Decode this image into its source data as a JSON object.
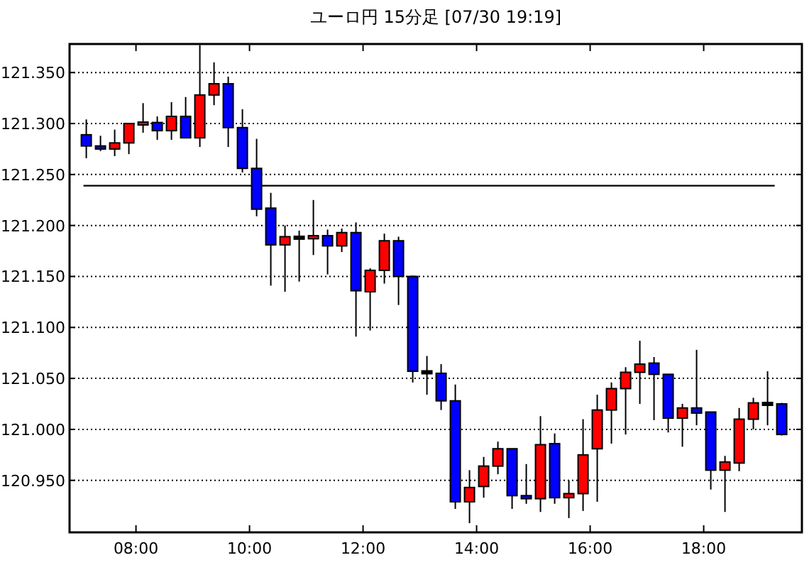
{
  "chart_data": {
    "type": "candlestick",
    "title": "ユーロ円 15分足 [07/30 19:19]",
    "x": [
      7.125,
      7.375,
      7.625,
      7.875,
      8.125,
      8.375,
      8.625,
      8.875,
      9.125,
      9.375,
      9.625,
      9.875,
      10.125,
      10.375,
      10.625,
      10.875,
      11.125,
      11.375,
      11.625,
      11.875,
      12.125,
      12.375,
      12.625,
      12.875,
      13.125,
      13.375,
      13.625,
      13.875,
      14.125,
      14.375,
      14.625,
      14.875,
      15.125,
      15.375,
      15.625,
      15.875,
      16.125,
      16.375,
      16.625,
      16.875,
      17.125,
      17.375,
      17.625,
      17.875,
      18.125,
      18.375,
      18.625,
      18.875,
      19.125,
      19.375
    ],
    "ohlc": [
      [
        121.289,
        121.304,
        121.266,
        121.278
      ],
      [
        121.278,
        121.288,
        121.273,
        121.275
      ],
      [
        121.275,
        121.294,
        121.268,
        121.281
      ],
      [
        121.281,
        121.3,
        121.27,
        121.3
      ],
      [
        121.299,
        121.32,
        121.291,
        121.301
      ],
      [
        121.301,
        121.307,
        121.284,
        121.293
      ],
      [
        121.293,
        121.321,
        121.284,
        121.307
      ],
      [
        121.307,
        121.326,
        121.286,
        121.286
      ],
      [
        121.286,
        121.377,
        121.277,
        121.328
      ],
      [
        121.328,
        121.36,
        121.318,
        121.339
      ],
      [
        121.339,
        121.346,
        121.277,
        121.296
      ],
      [
        121.296,
        121.314,
        121.252,
        121.256
      ],
      [
        121.256,
        121.285,
        121.209,
        121.216
      ],
      [
        121.217,
        121.232,
        121.141,
        121.181
      ],
      [
        121.181,
        121.2,
        121.135,
        121.189
      ],
      [
        121.188,
        121.195,
        121.145,
        121.188
      ],
      [
        121.187,
        121.225,
        121.171,
        121.19
      ],
      [
        121.19,
        121.196,
        121.152,
        121.18
      ],
      [
        121.18,
        121.197,
        121.174,
        121.193
      ],
      [
        121.193,
        121.203,
        121.091,
        121.136
      ],
      [
        121.135,
        121.158,
        121.097,
        121.156
      ],
      [
        121.156,
        121.192,
        121.143,
        121.185
      ],
      [
        121.185,
        121.189,
        121.122,
        121.15
      ],
      [
        121.15,
        121.151,
        121.046,
        121.057
      ],
      [
        121.056,
        121.072,
        121.034,
        121.056
      ],
      [
        121.055,
        121.064,
        121.019,
        121.028
      ],
      [
        121.028,
        121.044,
        120.922,
        120.929
      ],
      [
        120.929,
        120.96,
        120.908,
        120.943
      ],
      [
        120.944,
        120.973,
        120.933,
        120.964
      ],
      [
        120.964,
        120.988,
        120.956,
        120.981
      ],
      [
        120.981,
        120.981,
        120.922,
        120.935
      ],
      [
        120.935,
        120.966,
        120.927,
        120.932
      ],
      [
        120.932,
        121.013,
        120.919,
        120.985
      ],
      [
        120.986,
        120.996,
        120.927,
        120.933
      ],
      [
        120.933,
        120.95,
        120.913,
        120.937
      ],
      [
        120.937,
        121.01,
        120.92,
        120.975
      ],
      [
        120.981,
        121.034,
        120.929,
        121.019
      ],
      [
        121.019,
        121.046,
        120.986,
        121.04
      ],
      [
        121.04,
        121.061,
        120.995,
        121.056
      ],
      [
        121.056,
        121.087,
        121.025,
        121.064
      ],
      [
        121.065,
        121.071,
        121.009,
        121.054
      ],
      [
        121.054,
        121.054,
        120.997,
        121.011
      ],
      [
        121.011,
        121.025,
        120.983,
        121.021
      ],
      [
        121.021,
        121.078,
        121.004,
        121.016
      ],
      [
        121.017,
        121.017,
        120.941,
        120.96
      ],
      [
        120.96,
        120.974,
        120.919,
        120.968
      ],
      [
        120.967,
        121.021,
        120.959,
        121.01
      ],
      [
        121.01,
        121.031,
        121.0,
        121.026
      ],
      [
        121.025,
        121.057,
        121.004,
        121.025
      ],
      [
        121.025,
        121.026,
        120.994,
        120.995
      ]
    ],
    "colors": [
      "#0000ff",
      "#0000ff",
      "#ff0000",
      "#ff0000",
      "#ff0000",
      "#0000ff",
      "#ff0000",
      "#0000ff",
      "#ff0000",
      "#ff0000",
      "#0000ff",
      "#0000ff",
      "#0000ff",
      "#0000ff",
      "#ff0000",
      "#000000",
      "#ff0000",
      "#0000ff",
      "#ff0000",
      "#0000ff",
      "#ff0000",
      "#ff0000",
      "#0000ff",
      "#0000ff",
      "#000000",
      "#0000ff",
      "#0000ff",
      "#ff0000",
      "#ff0000",
      "#ff0000",
      "#0000ff",
      "#0000ff",
      "#ff0000",
      "#0000ff",
      "#ff0000",
      "#ff0000",
      "#ff0000",
      "#ff0000",
      "#ff0000",
      "#ff0000",
      "#0000ff",
      "#0000ff",
      "#ff0000",
      "#0000ff",
      "#0000ff",
      "#ff0000",
      "#ff0000",
      "#ff0000",
      "#000000",
      "#0000ff"
    ],
    "xlim": [
      6.83,
      19.73
    ],
    "xticks": [
      {
        "value": 8,
        "label": "08:00"
      },
      {
        "value": 10,
        "label": "10:00"
      },
      {
        "value": 12,
        "label": "12:00"
      },
      {
        "value": 14,
        "label": "14:00"
      },
      {
        "value": 16,
        "label": "16:00"
      },
      {
        "value": 18,
        "label": "18:00"
      }
    ],
    "ylim": [
      120.899,
      121.378
    ],
    "yticks": [
      {
        "value": 120.95,
        "label": "120.950"
      },
      {
        "value": 121.0,
        "label": "121.000"
      },
      {
        "value": 121.05,
        "label": "121.050"
      },
      {
        "value": 121.1,
        "label": "121.100"
      },
      {
        "value": 121.15,
        "label": "121.150"
      },
      {
        "value": 121.2,
        "label": "121.200"
      },
      {
        "value": 121.25,
        "label": "121.250"
      },
      {
        "value": 121.3,
        "label": "121.300"
      },
      {
        "value": 121.35,
        "label": "121.350"
      }
    ],
    "grid": "y",
    "ref_lines": [
      {
        "axis": "y",
        "value": 121.239,
        "color": "#000000"
      }
    ]
  }
}
